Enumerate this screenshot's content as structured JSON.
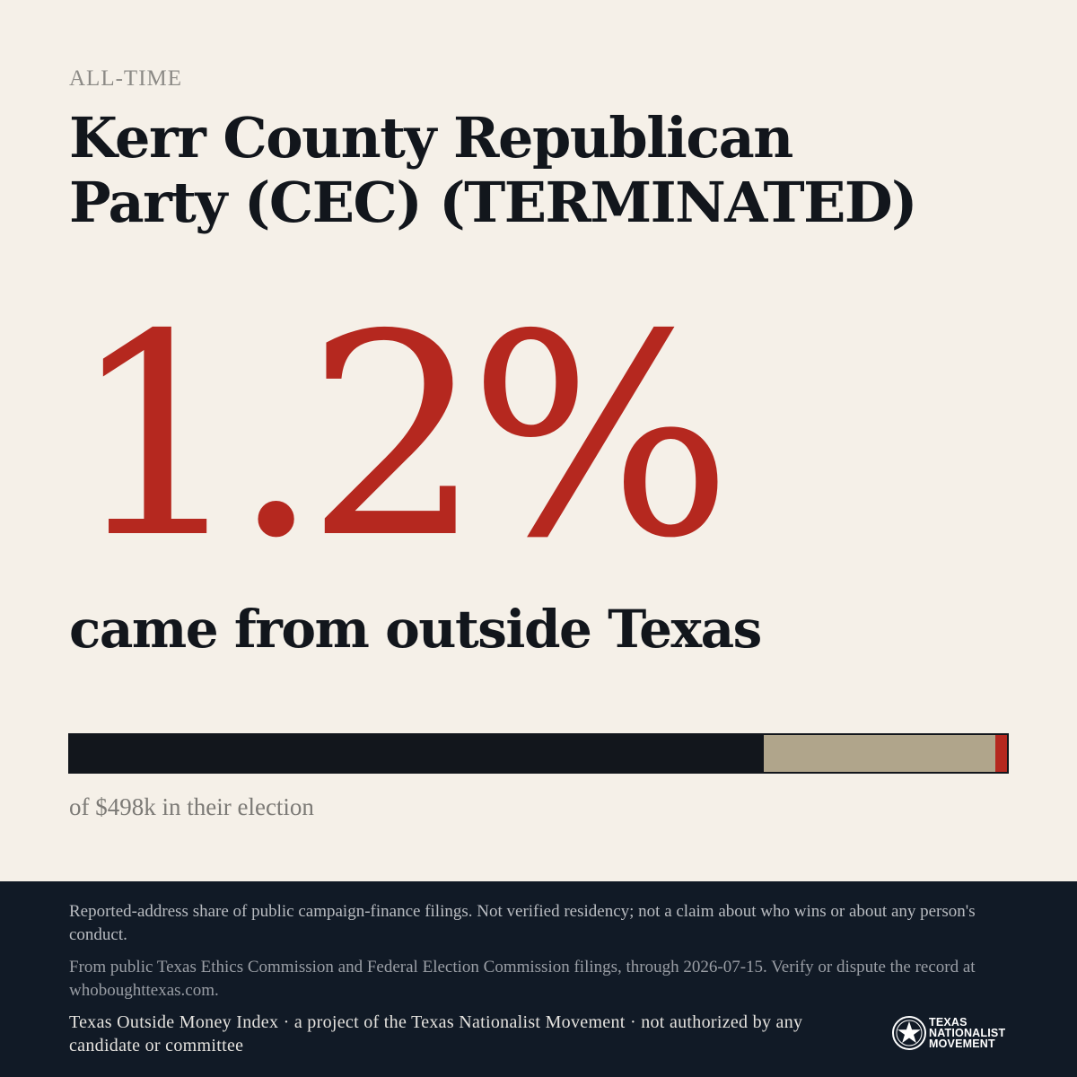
{
  "kicker": "ALL-TIME",
  "title": "Kerr County Republican Party (CEC) (TERMINATED)",
  "stat": {
    "value": "1.2%",
    "caption": "came from outside Texas"
  },
  "bar": {
    "segments": [
      {
        "name": "texas",
        "fraction": 0.74,
        "color": "#12161c"
      },
      {
        "name": "unknown",
        "fraction": 0.248,
        "color": "#b0a58b"
      },
      {
        "name": "outside-texas",
        "fraction": 0.012,
        "color": "#b5281f"
      }
    ],
    "caption": "of $498k in their election"
  },
  "footer": {
    "disclaimer": "Reported-address share of public campaign-finance filings. Not verified residency; not a claim about who wins or about any person's conduct.",
    "source": "From public Texas Ethics Commission and Federal Election Commission filings, through 2026-07-15. Verify or dispute the record at whoboughttexas.com.",
    "credit": "Texas Outside Money Index · a project of the Texas Nationalist Movement · not authorized by any candidate or committee",
    "logo": {
      "line1": "TEXAS",
      "line2": "NATIONALIST",
      "line3": "MOVEMENT",
      "icon": "star-seal-icon"
    }
  }
}
